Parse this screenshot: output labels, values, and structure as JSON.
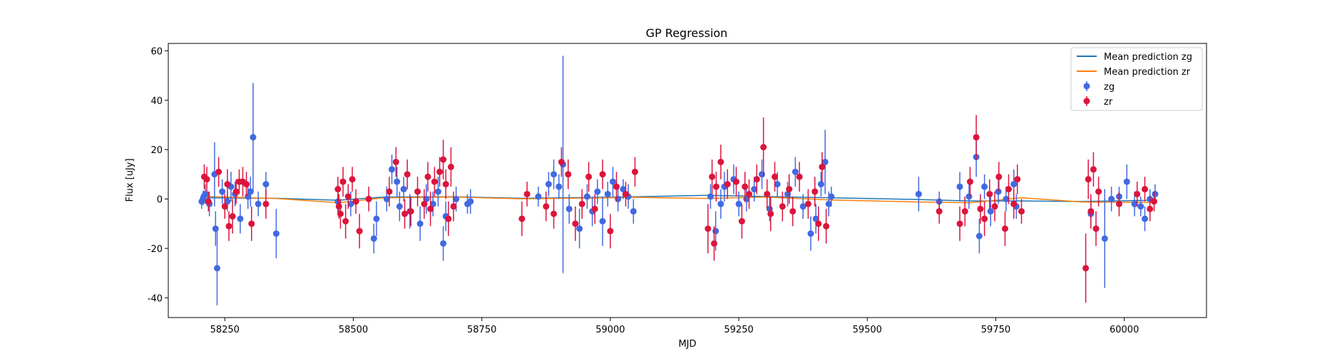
{
  "chart_data": {
    "type": "scatter",
    "title": "GP Regression",
    "xlabel": "MJD",
    "ylabel": "Flux [uJy]",
    "xlim": [
      58140,
      60160
    ],
    "ylim": [
      -48,
      63
    ],
    "xticks": [
      58250,
      58500,
      58750,
      59000,
      59250,
      59500,
      59750,
      60000
    ],
    "yticks": [
      -40,
      -20,
      0,
      20,
      40,
      60
    ],
    "grid": false,
    "legend_position": "top-right",
    "colors": {
      "zg": "#4169e1",
      "zr": "#dc143c",
      "mean_zg": "#1f77b4",
      "mean_zr": "#ff7f0e"
    },
    "series": [
      {
        "name": "Mean prediction zg",
        "kind": "line",
        "x": [
          58210,
          58350,
          58470,
          58560,
          58700,
          58830,
          58960,
          59050,
          59190,
          59300,
          59430,
          59600,
          59700,
          59800,
          59920,
          60060
        ],
        "y": [
          0.5,
          0.3,
          -0.5,
          0.8,
          0.9,
          0.3,
          0.6,
          0.9,
          1.5,
          1.0,
          0.5,
          -0.2,
          -0.8,
          -0.8,
          -1.0,
          -0.5
        ]
      },
      {
        "name": "Mean prediction zr",
        "kind": "line",
        "x": [
          58210,
          58350,
          58470,
          58560,
          58700,
          58830,
          58960,
          59050,
          59190,
          59300,
          59430,
          59600,
          59700,
          59800,
          59920,
          60060
        ],
        "y": [
          1.0,
          0.2,
          -1.5,
          0.5,
          0.8,
          0.1,
          0.4,
          0.7,
          0.2,
          0.8,
          -0.4,
          -1.2,
          -1.5,
          0.5,
          -1.2,
          -1.4
        ]
      },
      {
        "name": "zg",
        "kind": "errorbar",
        "points": [
          [
            58205,
            -1,
            3
          ],
          [
            58208,
            0.5,
            3
          ],
          [
            58212,
            2,
            4
          ],
          [
            58220,
            -2,
            5
          ],
          [
            58230,
            10,
            13
          ],
          [
            58232,
            -12,
            7
          ],
          [
            58235,
            -28,
            15
          ],
          [
            58245,
            3,
            5
          ],
          [
            58255,
            -1,
            4
          ],
          [
            58262,
            5,
            6
          ],
          [
            58270,
            2,
            5
          ],
          [
            58280,
            -8,
            6
          ],
          [
            58295,
            1,
            5
          ],
          [
            58300,
            3,
            6
          ],
          [
            58305,
            25,
            22
          ],
          [
            58315,
            -2,
            5
          ],
          [
            58330,
            6,
            5
          ],
          [
            58350,
            -14,
            10
          ],
          [
            58470,
            -1,
            5
          ],
          [
            58495,
            -2,
            5
          ],
          [
            58540,
            -16,
            6
          ],
          [
            58545,
            -8,
            7
          ],
          [
            58565,
            0,
            5
          ],
          [
            58575,
            12,
            6
          ],
          [
            58585,
            7,
            6
          ],
          [
            58590,
            -3,
            6
          ],
          [
            58598,
            4,
            5
          ],
          [
            58610,
            -5,
            7
          ],
          [
            58630,
            -10,
            7
          ],
          [
            58642,
            0,
            6
          ],
          [
            58655,
            -2,
            5
          ],
          [
            58665,
            3,
            6
          ],
          [
            58675,
            -18,
            7
          ],
          [
            58680,
            -7,
            6
          ],
          [
            58700,
            0,
            5
          ],
          [
            58722,
            -2,
            4
          ],
          [
            58728,
            -1,
            5
          ],
          [
            58860,
            1,
            4
          ],
          [
            58880,
            6,
            5
          ],
          [
            58890,
            10,
            6
          ],
          [
            58900,
            5,
            5
          ],
          [
            58908,
            14,
            44
          ],
          [
            58920,
            -4,
            6
          ],
          [
            58940,
            -12,
            8
          ],
          [
            58955,
            1,
            5
          ],
          [
            58965,
            -5,
            6
          ],
          [
            58975,
            3,
            5
          ],
          [
            58985,
            -9,
            10
          ],
          [
            58995,
            2,
            5
          ],
          [
            59005,
            7,
            6
          ],
          [
            59015,
            0,
            5
          ],
          [
            59025,
            4,
            4
          ],
          [
            59035,
            1,
            5
          ],
          [
            59045,
            -5,
            5
          ],
          [
            59195,
            1,
            5
          ],
          [
            59205,
            -13,
            8
          ],
          [
            59215,
            -2,
            6
          ],
          [
            59222,
            5,
            6
          ],
          [
            59240,
            8,
            6
          ],
          [
            59250,
            -2,
            5
          ],
          [
            59265,
            0,
            5
          ],
          [
            59280,
            4,
            5
          ],
          [
            59295,
            10,
            6
          ],
          [
            59310,
            -4,
            5
          ],
          [
            59325,
            6,
            5
          ],
          [
            59345,
            2,
            5
          ],
          [
            59360,
            11,
            6
          ],
          [
            59375,
            -3,
            5
          ],
          [
            59390,
            -14,
            7
          ],
          [
            59400,
            -8,
            6
          ],
          [
            59410,
            6,
            5
          ],
          [
            59418,
            15,
            13
          ],
          [
            59425,
            -2,
            5
          ],
          [
            59430,
            1,
            4
          ],
          [
            59600,
            2,
            7
          ],
          [
            59640,
            -1,
            4
          ],
          [
            59680,
            5,
            6
          ],
          [
            59698,
            1,
            5
          ],
          [
            59712,
            17,
            8
          ],
          [
            59718,
            -15,
            7
          ],
          [
            59728,
            5,
            5
          ],
          [
            59740,
            -5,
            6
          ],
          [
            59755,
            3,
            5
          ],
          [
            59770,
            0,
            5
          ],
          [
            59785,
            6,
            6
          ],
          [
            59790,
            -3,
            5
          ],
          [
            59935,
            -6,
            6
          ],
          [
            59962,
            -16,
            20
          ],
          [
            59975,
            0,
            5
          ],
          [
            59990,
            1,
            4
          ],
          [
            60005,
            7,
            7
          ],
          [
            60020,
            -2,
            5
          ],
          [
            60032,
            -3,
            4
          ],
          [
            60040,
            -8,
            5
          ],
          [
            60050,
            0,
            4
          ],
          [
            60060,
            2,
            4
          ]
        ]
      },
      {
        "name": "zr",
        "kind": "errorbar",
        "points": [
          [
            58210,
            9,
            5
          ],
          [
            58215,
            8,
            5
          ],
          [
            58218,
            -1,
            4
          ],
          [
            58238,
            11,
            6
          ],
          [
            58250,
            -3,
            5
          ],
          [
            58255,
            6,
            6
          ],
          [
            58258,
            -11,
            6
          ],
          [
            58265,
            -7,
            7
          ],
          [
            58272,
            3,
            5
          ],
          [
            58278,
            7,
            5
          ],
          [
            58285,
            7,
            6
          ],
          [
            58292,
            6,
            5
          ],
          [
            58302,
            -10,
            7
          ],
          [
            58330,
            -2,
            6
          ],
          [
            58470,
            4,
            5
          ],
          [
            58472,
            -3,
            5
          ],
          [
            58475,
            -6,
            6
          ],
          [
            58480,
            7,
            6
          ],
          [
            58485,
            -9,
            7
          ],
          [
            58490,
            1,
            5
          ],
          [
            58498,
            8,
            5
          ],
          [
            58505,
            -1,
            5
          ],
          [
            58512,
            -13,
            7
          ],
          [
            58530,
            0,
            5
          ],
          [
            58570,
            3,
            6
          ],
          [
            58583,
            15,
            6
          ],
          [
            58600,
            -6,
            6
          ],
          [
            58605,
            10,
            6
          ],
          [
            58612,
            -5,
            6
          ],
          [
            58625,
            3,
            6
          ],
          [
            58638,
            -2,
            6
          ],
          [
            58645,
            9,
            6
          ],
          [
            58650,
            -4,
            7
          ],
          [
            58658,
            7,
            6
          ],
          [
            58668,
            11,
            6
          ],
          [
            58675,
            16,
            8
          ],
          [
            58680,
            6,
            6
          ],
          [
            58685,
            -8,
            7
          ],
          [
            58690,
            13,
            8
          ],
          [
            58695,
            -3,
            6
          ],
          [
            58828,
            -8,
            7
          ],
          [
            58838,
            2,
            5
          ],
          [
            58875,
            -3,
            6
          ],
          [
            58890,
            -6,
            6
          ],
          [
            58905,
            15,
            6
          ],
          [
            58918,
            10,
            6
          ],
          [
            58932,
            -10,
            7
          ],
          [
            58945,
            -2,
            6
          ],
          [
            58958,
            9,
            6
          ],
          [
            58970,
            -4,
            6
          ],
          [
            58985,
            10,
            6
          ],
          [
            59000,
            -13,
            7
          ],
          [
            59012,
            5,
            6
          ],
          [
            59030,
            2,
            5
          ],
          [
            59048,
            11,
            6
          ],
          [
            59190,
            -12,
            10
          ],
          [
            59198,
            9,
            7
          ],
          [
            59202,
            -18,
            7
          ],
          [
            59206,
            5,
            6
          ],
          [
            59215,
            15,
            7
          ],
          [
            59228,
            6,
            6
          ],
          [
            59245,
            7,
            6
          ],
          [
            59256,
            -9,
            7
          ],
          [
            59262,
            5,
            6
          ],
          [
            59270,
            2,
            6
          ],
          [
            59285,
            8,
            6
          ],
          [
            59298,
            21,
            12
          ],
          [
            59305,
            2,
            6
          ],
          [
            59312,
            -6,
            7
          ],
          [
            59320,
            9,
            6
          ],
          [
            59335,
            -3,
            6
          ],
          [
            59348,
            4,
            6
          ],
          [
            59355,
            -5,
            6
          ],
          [
            59368,
            9,
            6
          ],
          [
            59385,
            -2,
            6
          ],
          [
            59398,
            3,
            6
          ],
          [
            59405,
            -10,
            7
          ],
          [
            59412,
            13,
            6
          ],
          [
            59420,
            -11,
            7
          ],
          [
            59640,
            -5,
            5
          ],
          [
            59680,
            -10,
            7
          ],
          [
            59690,
            -5,
            6
          ],
          [
            59700,
            7,
            6
          ],
          [
            59712,
            25,
            9
          ],
          [
            59720,
            -4,
            6
          ],
          [
            59728,
            -8,
            7
          ],
          [
            59738,
            2,
            6
          ],
          [
            59748,
            -3,
            6
          ],
          [
            59756,
            9,
            6
          ],
          [
            59768,
            -12,
            7
          ],
          [
            59775,
            4,
            6
          ],
          [
            59785,
            -2,
            6
          ],
          [
            59792,
            8,
            6
          ],
          [
            59800,
            -5,
            5
          ],
          [
            59925,
            -28,
            14
          ],
          [
            59930,
            8,
            8
          ],
          [
            59935,
            -5,
            7
          ],
          [
            59940,
            12,
            7
          ],
          [
            59945,
            -12,
            7
          ],
          [
            59950,
            3,
            6
          ],
          [
            59990,
            -2,
            5
          ],
          [
            60025,
            2,
            5
          ],
          [
            60040,
            4,
            5
          ],
          [
            60050,
            -4,
            5
          ],
          [
            60058,
            -1,
            4
          ]
        ]
      }
    ]
  }
}
